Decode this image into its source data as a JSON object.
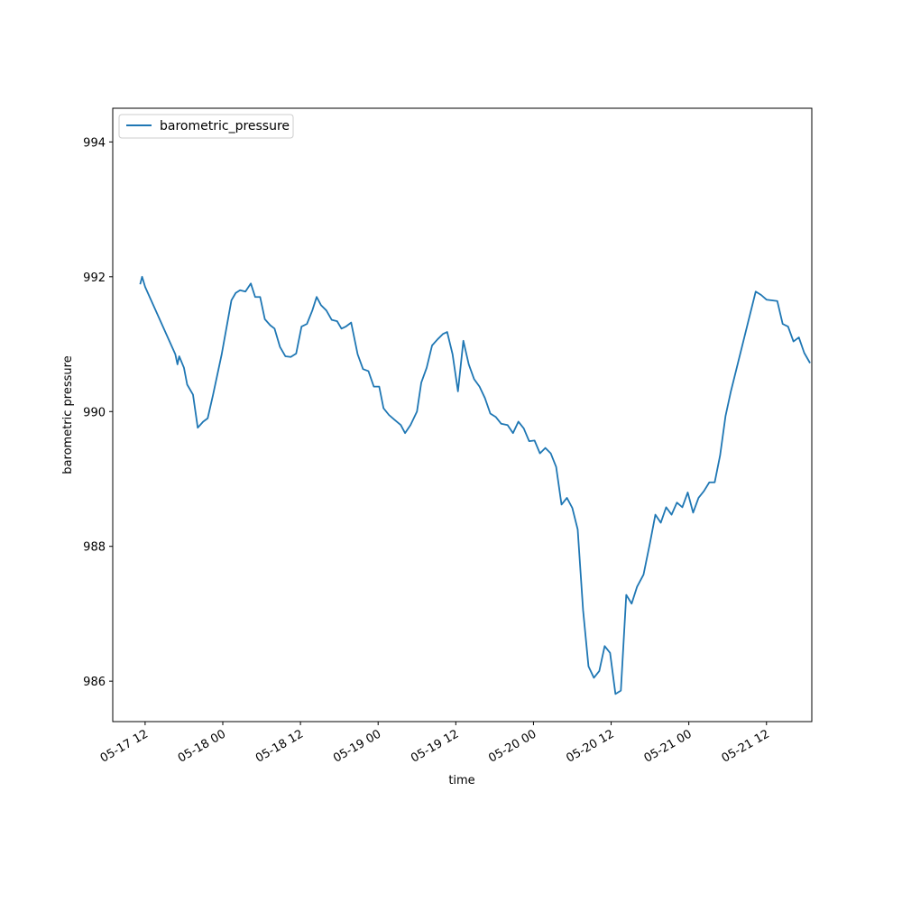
{
  "chart_data": {
    "type": "line",
    "xlabel": "time",
    "ylabel": "barometric pressure",
    "x_axis_type": "datetime",
    "xlim": [
      "2017-05-17T07:00",
      "2017-05-21T19:00"
    ],
    "ylim": [
      985.4,
      994.5
    ],
    "x_ticks": [
      {
        "value": "2017-05-17T12:00",
        "label": "05-17 12"
      },
      {
        "value": "2017-05-18T00:00",
        "label": "05-18 00"
      },
      {
        "value": "2017-05-18T12:00",
        "label": "05-18 12"
      },
      {
        "value": "2017-05-19T00:00",
        "label": "05-19 00"
      },
      {
        "value": "2017-05-19T12:00",
        "label": "05-19 12"
      },
      {
        "value": "2017-05-20T00:00",
        "label": "05-20 00"
      },
      {
        "value": "2017-05-20T12:00",
        "label": "05-20 12"
      },
      {
        "value": "2017-05-21T00:00",
        "label": "05-21 00"
      },
      {
        "value": "2017-05-21T12:00",
        "label": "05-21 12"
      }
    ],
    "y_ticks": [
      986,
      988,
      990,
      992,
      994
    ],
    "legend": {
      "position": "top-left"
    },
    "grid": false,
    "series": [
      {
        "name": "barometric_pressure",
        "color": "#1f77b4",
        "points": [
          [
            "2017-05-17T11:16",
            991.9
          ],
          [
            "2017-05-17T11:32",
            992.0
          ],
          [
            "2017-05-17T12:00",
            991.85
          ],
          [
            "2017-05-17T16:40",
            990.85
          ],
          [
            "2017-05-17T17:00",
            990.7
          ],
          [
            "2017-05-17T17:16",
            990.82
          ],
          [
            "2017-05-17T18:00",
            990.65
          ],
          [
            "2017-05-17T18:30",
            990.4
          ],
          [
            "2017-05-17T19:24",
            990.25
          ],
          [
            "2017-05-17T20:08",
            989.76
          ],
          [
            "2017-05-17T20:58",
            989.85
          ],
          [
            "2017-05-17T21:40",
            989.9
          ],
          [
            "2017-05-17T22:30",
            990.25
          ],
          [
            "2017-05-17T23:50",
            990.85
          ],
          [
            "2017-05-18T01:20",
            991.65
          ],
          [
            "2017-05-18T02:00",
            991.76
          ],
          [
            "2017-05-18T02:40",
            991.8
          ],
          [
            "2017-05-18T03:30",
            991.78
          ],
          [
            "2017-05-18T04:20",
            991.9
          ],
          [
            "2017-05-18T05:00",
            991.7
          ],
          [
            "2017-05-18T05:46",
            991.7
          ],
          [
            "2017-05-18T06:30",
            991.37
          ],
          [
            "2017-05-18T07:20",
            991.28
          ],
          [
            "2017-05-18T08:00",
            991.23
          ],
          [
            "2017-05-18T08:50",
            990.96
          ],
          [
            "2017-05-18T09:40",
            990.82
          ],
          [
            "2017-05-18T10:30",
            990.81
          ],
          [
            "2017-05-18T11:20",
            990.86
          ],
          [
            "2017-05-18T12:10",
            991.26
          ],
          [
            "2017-05-18T13:00",
            991.3
          ],
          [
            "2017-05-18T13:50",
            991.5
          ],
          [
            "2017-05-18T14:30",
            991.7
          ],
          [
            "2017-05-18T15:10",
            991.58
          ],
          [
            "2017-05-18T16:00",
            991.5
          ],
          [
            "2017-05-18T16:50",
            991.36
          ],
          [
            "2017-05-18T17:40",
            991.34
          ],
          [
            "2017-05-18T18:20",
            991.23
          ],
          [
            "2017-05-18T19:00",
            991.26
          ],
          [
            "2017-05-18T19:50",
            991.32
          ],
          [
            "2017-05-18T20:50",
            990.85
          ],
          [
            "2017-05-18T21:40",
            990.63
          ],
          [
            "2017-05-18T22:30",
            990.6
          ],
          [
            "2017-05-18T23:20",
            990.37
          ],
          [
            "2017-05-19T00:10",
            990.37
          ],
          [
            "2017-05-19T00:50",
            990.05
          ],
          [
            "2017-05-19T01:40",
            989.95
          ],
          [
            "2017-05-19T02:30",
            989.88
          ],
          [
            "2017-05-19T03:30",
            989.8
          ],
          [
            "2017-05-19T04:10",
            989.68
          ],
          [
            "2017-05-19T05:00",
            989.8
          ],
          [
            "2017-05-19T06:00",
            990.0
          ],
          [
            "2017-05-19T06:40",
            990.43
          ],
          [
            "2017-05-19T07:30",
            990.65
          ],
          [
            "2017-05-19T08:20",
            990.98
          ],
          [
            "2017-05-19T09:10",
            991.07
          ],
          [
            "2017-05-19T10:00",
            991.15
          ],
          [
            "2017-05-19T10:40",
            991.18
          ],
          [
            "2017-05-19T11:30",
            990.85
          ],
          [
            "2017-05-19T12:20",
            990.3
          ],
          [
            "2017-05-19T13:10",
            991.05
          ],
          [
            "2017-05-19T14:00",
            990.7
          ],
          [
            "2017-05-19T14:50",
            990.48
          ],
          [
            "2017-05-19T15:40",
            990.37
          ],
          [
            "2017-05-19T16:30",
            990.2
          ],
          [
            "2017-05-19T17:20",
            989.97
          ],
          [
            "2017-05-19T18:10",
            989.92
          ],
          [
            "2017-05-19T19:00",
            989.82
          ],
          [
            "2017-05-19T20:00",
            989.8
          ],
          [
            "2017-05-19T20:50",
            989.68
          ],
          [
            "2017-05-19T21:40",
            989.85
          ],
          [
            "2017-05-19T22:30",
            989.75
          ],
          [
            "2017-05-19T23:20",
            989.56
          ],
          [
            "2017-05-20T00:10",
            989.57
          ],
          [
            "2017-05-20T01:00",
            989.38
          ],
          [
            "2017-05-20T01:50",
            989.46
          ],
          [
            "2017-05-20T02:40",
            989.38
          ],
          [
            "2017-05-20T03:30",
            989.18
          ],
          [
            "2017-05-20T04:20",
            988.62
          ],
          [
            "2017-05-20T05:10",
            988.72
          ],
          [
            "2017-05-20T06:00",
            988.57
          ],
          [
            "2017-05-20T06:50",
            988.25
          ],
          [
            "2017-05-20T07:40",
            987.05
          ],
          [
            "2017-05-20T08:30",
            986.22
          ],
          [
            "2017-05-20T09:20",
            986.05
          ],
          [
            "2017-05-20T10:10",
            986.15
          ],
          [
            "2017-05-20T11:00",
            986.52
          ],
          [
            "2017-05-20T11:50",
            986.42
          ],
          [
            "2017-05-20T12:40",
            985.81
          ],
          [
            "2017-05-20T13:30",
            985.86
          ],
          [
            "2017-05-20T14:20",
            987.28
          ],
          [
            "2017-05-20T15:10",
            987.15
          ],
          [
            "2017-05-20T16:00",
            987.4
          ],
          [
            "2017-05-20T17:00",
            987.58
          ],
          [
            "2017-05-20T18:00",
            988.05
          ],
          [
            "2017-05-20T18:50",
            988.47
          ],
          [
            "2017-05-20T19:40",
            988.35
          ],
          [
            "2017-05-20T20:30",
            988.58
          ],
          [
            "2017-05-20T21:20",
            988.47
          ],
          [
            "2017-05-20T22:10",
            988.65
          ],
          [
            "2017-05-20T23:00",
            988.58
          ],
          [
            "2017-05-20T23:50",
            988.8
          ],
          [
            "2017-05-21T00:40",
            988.5
          ],
          [
            "2017-05-21T01:30",
            988.72
          ],
          [
            "2017-05-21T02:20",
            988.82
          ],
          [
            "2017-05-21T03:10",
            988.95
          ],
          [
            "2017-05-21T04:00",
            988.95
          ],
          [
            "2017-05-21T04:50",
            989.35
          ],
          [
            "2017-05-21T05:40",
            989.93
          ],
          [
            "2017-05-21T06:30",
            990.3
          ],
          [
            "2017-05-21T10:20",
            991.78
          ],
          [
            "2017-05-21T11:10",
            991.73
          ],
          [
            "2017-05-21T12:00",
            991.66
          ],
          [
            "2017-05-21T12:50",
            991.65
          ],
          [
            "2017-05-21T13:40",
            991.64
          ],
          [
            "2017-05-21T14:30",
            991.3
          ],
          [
            "2017-05-21T15:20",
            991.26
          ],
          [
            "2017-05-21T16:10",
            991.04
          ],
          [
            "2017-05-21T17:00",
            991.1
          ],
          [
            "2017-05-21T17:50",
            990.87
          ],
          [
            "2017-05-21T18:40",
            990.73
          ]
        ]
      }
    ]
  }
}
